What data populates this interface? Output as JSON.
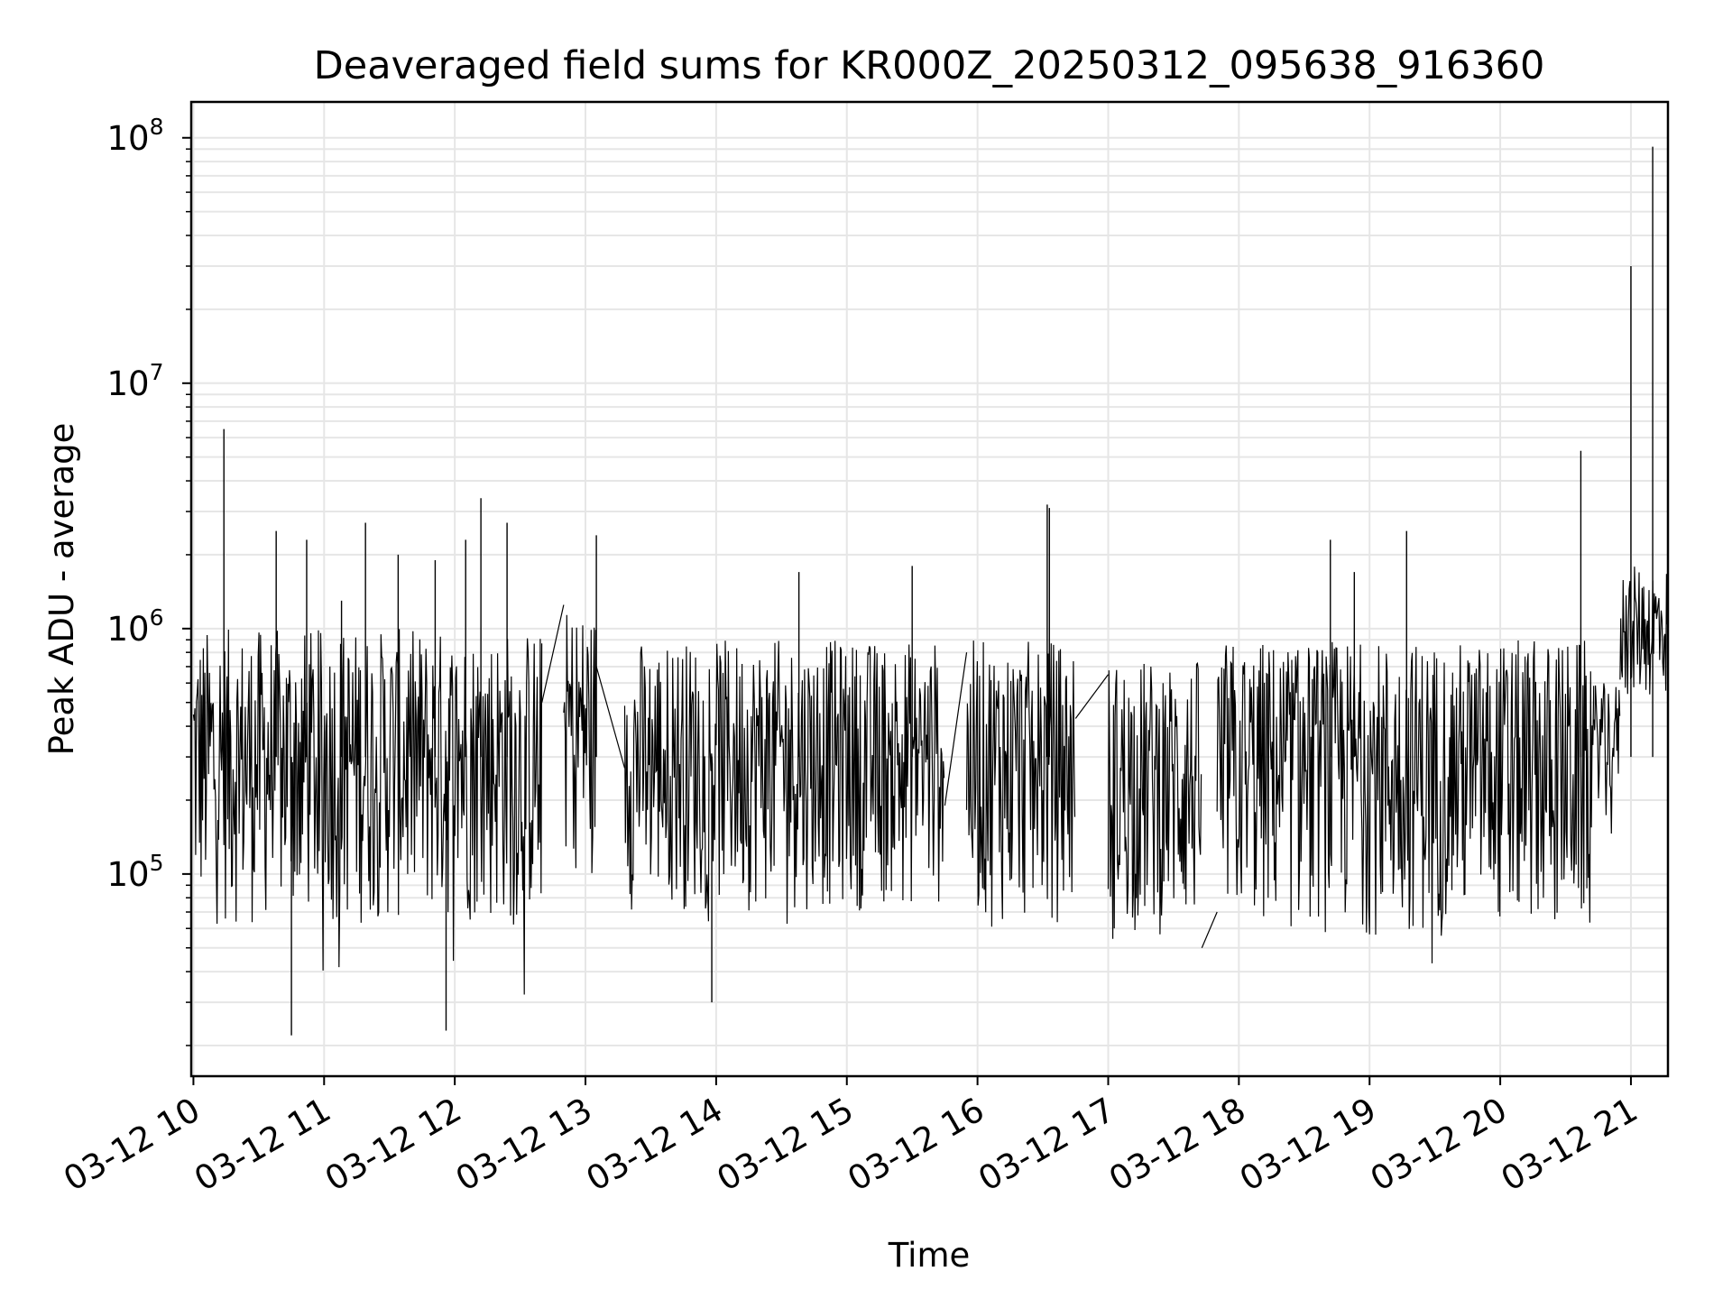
{
  "chart_data": {
    "type": "line",
    "title": "Deaveraged field sums for KR000Z_20250312_095638_916360",
    "xlabel": "Time",
    "ylabel": "Peak ADU - average",
    "x_axis": {
      "kind": "time",
      "range": [
        "03-12 09:59",
        "03-12 21:17"
      ],
      "tick_labels": [
        "03-12 10",
        "03-12 11",
        "03-12 12",
        "03-12 13",
        "03-12 14",
        "03-12 15",
        "03-12 16",
        "03-12 17",
        "03-12 18",
        "03-12 19",
        "03-12 20",
        "03-12 21"
      ]
    },
    "y_axis": {
      "scale": "log",
      "range": [
        15000,
        140000000
      ],
      "tick_labels": [
        {
          "base": "10",
          "exp": "5"
        },
        {
          "base": "10",
          "exp": "6"
        },
        {
          "base": "10",
          "exp": "7"
        },
        {
          "base": "10",
          "exp": "8"
        }
      ]
    },
    "grid": true,
    "line_color": "#000000",
    "grid_color": "#e6e6e6",
    "series": [
      {
        "segments": [
          {
            "start": "03-12 10:00",
            "end": "03-12 12:40",
            "typical_low": 60000,
            "typical_high": 1000000
          },
          {
            "start": "03-12 12:50",
            "end": "03-12 13:05",
            "typical_low": 100000,
            "typical_high": 1200000
          },
          {
            "start": "03-12 13:18",
            "end": "03-12 15:45",
            "typical_low": 70000,
            "typical_high": 900000
          },
          {
            "start": "03-12 15:55",
            "end": "03-12 16:45",
            "typical_low": 60000,
            "typical_high": 900000
          },
          {
            "start": "03-12 17:00",
            "end": "03-12 17:43",
            "typical_low": 55000,
            "typical_high": 750000
          },
          {
            "start": "03-12 17:50",
            "end": "03-12 20:43",
            "typical_low": 55000,
            "typical_high": 900000
          },
          {
            "start": "03-12 20:43",
            "end": "03-12 20:55",
            "typical_low": 200000,
            "typical_high": 600000
          },
          {
            "start": "03-12 20:55",
            "end": "03-12 21:17",
            "typical_low": 500000,
            "typical_high": 1800000
          }
        ],
        "bridges": [
          [
            "03-12 12:40",
            500000,
            "03-12 12:50",
            1250000
          ],
          [
            "03-12 13:05",
            700000,
            "03-12 13:18",
            270000
          ],
          [
            "03-12 15:45",
            190000,
            "03-12 15:55",
            800000
          ],
          [
            "03-12 16:45",
            430000,
            "03-12 17:00",
            650000
          ],
          [
            "03-12 17:43",
            50000,
            "03-12 17:50",
            70000
          ]
        ],
        "spikes": [
          [
            "03-12 10:14",
            6500000
          ],
          [
            "03-12 10:38",
            2500000
          ],
          [
            "03-12 10:45",
            22000
          ],
          [
            "03-12 10:52",
            2300000
          ],
          [
            "03-12 11:08",
            1300000
          ],
          [
            "03-12 11:19",
            2700000
          ],
          [
            "03-12 11:34",
            2000000
          ],
          [
            "03-12 11:51",
            1900000
          ],
          [
            "03-12 11:56",
            23000
          ],
          [
            "03-12 12:05",
            2300000
          ],
          [
            "03-12 12:12",
            3400000
          ],
          [
            "03-12 12:24",
            2700000
          ],
          [
            "03-12 13:05",
            2400000
          ],
          [
            "03-12 13:58",
            30000
          ],
          [
            "03-12 14:38",
            1700000
          ],
          [
            "03-12 15:30",
            1800000
          ],
          [
            "03-12 16:32",
            3200000
          ],
          [
            "03-12 16:33",
            3100000
          ],
          [
            "03-12 18:42",
            2300000
          ],
          [
            "03-12 18:53",
            1700000
          ],
          [
            "03-12 19:17",
            2500000
          ],
          [
            "03-12 20:37",
            5300000
          ],
          [
            "03-12 21:00",
            30000000
          ],
          [
            "03-12 21:10",
            92000000
          ]
        ]
      }
    ]
  }
}
